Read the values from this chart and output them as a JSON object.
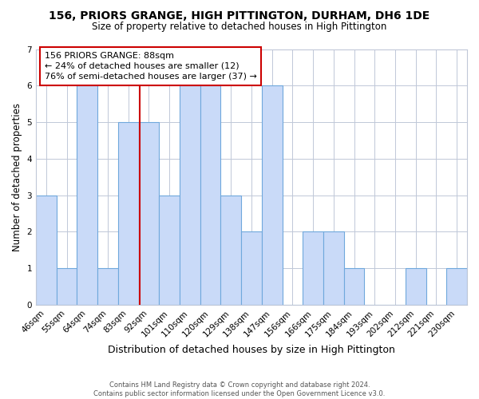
{
  "title": "156, PRIORS GRANGE, HIGH PITTINGTON, DURHAM, DH6 1DE",
  "subtitle": "Size of property relative to detached houses in High Pittington",
  "xlabel": "Distribution of detached houses by size in High Pittington",
  "ylabel": "Number of detached properties",
  "bin_labels": [
    "46sqm",
    "55sqm",
    "64sqm",
    "74sqm",
    "83sqm",
    "92sqm",
    "101sqm",
    "110sqm",
    "120sqm",
    "129sqm",
    "138sqm",
    "147sqm",
    "156sqm",
    "166sqm",
    "175sqm",
    "184sqm",
    "193sqm",
    "202sqm",
    "212sqm",
    "221sqm",
    "230sqm"
  ],
  "bar_heights": [
    3,
    1,
    6,
    1,
    5,
    5,
    3,
    6,
    6,
    3,
    2,
    6,
    0,
    2,
    2,
    1,
    0,
    0,
    1,
    0,
    1
  ],
  "bar_color": "#c9daf8",
  "bar_edge_color": "#6fa8dc",
  "annotation_title": "156 PRIORS GRANGE: 88sqm",
  "annotation_line1": "← 24% of detached houses are smaller (12)",
  "annotation_line2": "76% of semi-detached houses are larger (37) →",
  "annotation_box_color": "#ffffff",
  "annotation_box_edge_color": "#cc0000",
  "property_line_color": "#cc0000",
  "ylim": [
    0,
    7
  ],
  "yticks": [
    0,
    1,
    2,
    3,
    4,
    5,
    6,
    7
  ],
  "footer_line1": "Contains HM Land Registry data © Crown copyright and database right 2024.",
  "footer_line2": "Contains public sector information licensed under the Open Government Licence v3.0.",
  "background_color": "#ffffff",
  "grid_color": "#c0c8d8",
  "title_fontsize": 10,
  "subtitle_fontsize": 8.5,
  "xlabel_fontsize": 9,
  "ylabel_fontsize": 8.5,
  "tick_fontsize": 7.5,
  "annotation_fontsize": 8,
  "footer_fontsize": 6
}
